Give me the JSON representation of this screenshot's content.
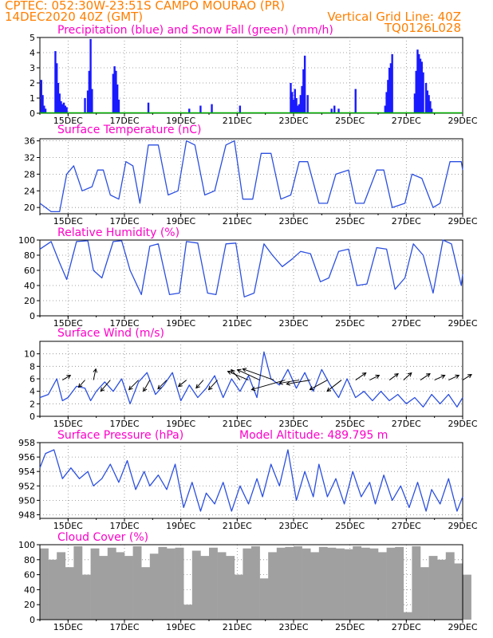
{
  "header": {
    "line1": "CPTEC:    052:30W-23:51S   CAMPO MOURAO (PR)",
    "line2_left": "14DEC2020  40Z (GMT)",
    "line2_right": "Vertical Grid Line: 40Z",
    "code": "TQ0126L028"
  },
  "colors": {
    "header_text": "#ff7f00",
    "panel_title": "#ff00c8",
    "precip_bars": "#1a1aff",
    "snow": "#00b000",
    "line": "#2b4fe0",
    "wind_arrow": "#000000",
    "cloud_fill": "#a0a0a0",
    "grid": "#888888"
  },
  "x_axis": {
    "tick_labels": [
      "15DEC",
      "17DEC",
      "19DEC",
      "21DEC",
      "23DEC",
      "25DEC",
      "27DEC",
      "29DEC"
    ],
    "range_days": [
      14.0,
      29.0
    ]
  },
  "chart_data": [
    {
      "type": "bar",
      "title": "Precipitation (blue) and Snow Fall (green) (mm/h)",
      "ylim": [
        0,
        5
      ],
      "yticks": [
        0,
        1,
        2,
        3,
        4,
        5
      ],
      "grid": true,
      "series": [
        {
          "name": "Precipitation",
          "color": "#1a1aff",
          "x": [
            14.05,
            14.1,
            14.15,
            14.2,
            14.55,
            14.6,
            14.65,
            14.7,
            14.75,
            14.8,
            14.85,
            14.9,
            14.95,
            15.6,
            15.7,
            15.75,
            15.8,
            15.85,
            16.6,
            16.65,
            16.7,
            16.75,
            16.8,
            17.85,
            19.3,
            19.7,
            20.1,
            21.1,
            22.9,
            22.95,
            23.0,
            23.05,
            23.1,
            23.15,
            23.2,
            23.25,
            23.3,
            23.35,
            23.4,
            23.5,
            24.35,
            24.45,
            24.6,
            25.2,
            26.25,
            26.3,
            26.35,
            26.4,
            26.45,
            26.5,
            27.3,
            27.35,
            27.4,
            27.45,
            27.5,
            27.55,
            27.6,
            27.7,
            27.75,
            27.8,
            27.85,
            27.9
          ],
          "values": [
            2.2,
            1.2,
            0.5,
            0.3,
            4.1,
            3.3,
            2.0,
            1.3,
            0.8,
            0.6,
            0.7,
            0.5,
            0.4,
            1.0,
            1.5,
            2.8,
            4.9,
            1.6,
            2.6,
            3.1,
            2.8,
            1.9,
            0.9,
            0.7,
            0.3,
            0.5,
            0.6,
            0.5,
            2.0,
            1.4,
            0.9,
            1.6,
            1.0,
            0.5,
            0.6,
            1.2,
            1.8,
            2.9,
            3.8,
            1.2,
            0.3,
            0.5,
            0.3,
            1.6,
            0.5,
            1.4,
            2.2,
            3.0,
            3.3,
            3.9,
            1.3,
            2.8,
            4.2,
            3.9,
            3.6,
            3.4,
            2.7,
            2.0,
            1.5,
            1.2,
            0.8,
            0.3
          ]
        },
        {
          "name": "Snow Fall",
          "color": "#00b000",
          "x": [
            14.0,
            29.0
          ],
          "values": [
            0,
            0
          ]
        }
      ]
    },
    {
      "type": "line",
      "title": "Surface Temperature (nC)",
      "ylim": [
        18.5,
        36.5
      ],
      "yticks": [
        20,
        24,
        28,
        32,
        36
      ],
      "grid": true,
      "series": [
        {
          "x": [
            14.0,
            14.4,
            14.7,
            14.95,
            15.2,
            15.5,
            15.85,
            16.05,
            16.25,
            16.5,
            16.8,
            17.05,
            17.3,
            17.55,
            17.85,
            18.2,
            18.55,
            18.9,
            19.2,
            19.5,
            19.85,
            20.2,
            20.6,
            20.9,
            21.2,
            21.55,
            21.85,
            22.2,
            22.55,
            22.9,
            23.2,
            23.5,
            23.9,
            24.2,
            24.5,
            24.95,
            25.2,
            25.5,
            25.95,
            26.2,
            26.5,
            26.95,
            27.2,
            27.55,
            27.95,
            28.2,
            28.55,
            28.95,
            29.0
          ],
          "values": [
            21,
            19,
            19,
            28,
            30,
            24,
            25,
            29,
            29,
            23,
            22,
            31,
            30,
            21,
            35,
            35,
            23,
            24,
            36,
            35,
            23,
            24,
            35,
            36,
            22,
            22,
            33,
            33,
            22,
            23,
            31,
            31,
            21,
            21,
            28,
            29,
            21,
            21,
            29,
            29,
            20,
            21,
            28,
            27,
            20,
            21,
            31,
            31,
            29
          ]
        }
      ]
    },
    {
      "type": "line",
      "title": "Relative Humidity (%)",
      "ylim": [
        0,
        100
      ],
      "yticks": [
        0,
        20,
        40,
        60,
        80,
        100
      ],
      "grid": true,
      "series": [
        {
          "x": [
            14.0,
            14.4,
            14.7,
            14.95,
            15.3,
            15.7,
            15.9,
            16.2,
            16.6,
            16.9,
            17.2,
            17.6,
            17.9,
            18.2,
            18.6,
            18.95,
            19.2,
            19.6,
            19.95,
            20.25,
            20.6,
            20.95,
            21.25,
            21.6,
            21.95,
            22.25,
            22.6,
            22.95,
            23.25,
            23.6,
            23.95,
            24.25,
            24.6,
            24.95,
            25.25,
            25.6,
            25.95,
            26.3,
            26.6,
            26.95,
            27.25,
            27.6,
            27.95,
            28.3,
            28.6,
            28.95,
            29.0
          ],
          "values": [
            88,
            98,
            70,
            48,
            98,
            99,
            60,
            50,
            98,
            99,
            60,
            28,
            92,
            95,
            28,
            30,
            98,
            96,
            30,
            28,
            95,
            96,
            25,
            30,
            95,
            80,
            65,
            75,
            85,
            82,
            45,
            50,
            85,
            88,
            40,
            42,
            90,
            88,
            35,
            50,
            95,
            80,
            30,
            100,
            95,
            40,
            55
          ]
        }
      ]
    },
    {
      "type": "line",
      "title": "Surface Wind (m/s)",
      "ylim": [
        0,
        12
      ],
      "yticks": [
        0,
        2,
        4,
        6,
        8,
        10
      ],
      "grid": true,
      "series": [
        {
          "x": [
            14.0,
            14.3,
            14.6,
            14.8,
            15.0,
            15.3,
            15.6,
            15.8,
            16.0,
            16.3,
            16.6,
            16.9,
            17.2,
            17.5,
            17.8,
            18.1,
            18.4,
            18.7,
            19.0,
            19.3,
            19.6,
            19.9,
            20.2,
            20.5,
            20.8,
            21.1,
            21.4,
            21.7,
            21.95,
            22.2,
            22.5,
            22.8,
            23.1,
            23.4,
            23.7,
            24.0,
            24.3,
            24.6,
            24.9,
            25.2,
            25.5,
            25.8,
            26.1,
            26.4,
            26.7,
            27.0,
            27.3,
            27.6,
            27.9,
            28.2,
            28.5,
            28.8,
            29.0
          ],
          "values": [
            3,
            3.5,
            6,
            2.5,
            3,
            4.8,
            4.5,
            2.5,
            4,
            5.5,
            4,
            6,
            2,
            5.5,
            7,
            3.5,
            5,
            7,
            2.5,
            5,
            3,
            4.5,
            6.5,
            3,
            6,
            4,
            6.5,
            3,
            10.3,
            6,
            5,
            7.5,
            4.5,
            7,
            4,
            7.5,
            5,
            3,
            6,
            3,
            4,
            2.5,
            4,
            2.5,
            3.5,
            2,
            3,
            1.5,
            3.5,
            2,
            3.5,
            1.5,
            3
          ]
        }
      ],
      "wind_arrows": {
        "x": [
          14.8,
          15.6,
          15.9,
          16.5,
          17.5,
          17.9,
          18.5,
          19.2,
          19.8,
          20.3,
          21.1,
          21.4,
          21.8,
          22.3,
          22.7,
          23.2,
          23.6,
          24.2,
          24.7,
          25.2,
          25.7,
          26.4,
          26.9,
          27.5,
          28.0,
          28.5,
          29.0
        ],
        "u": [
          1.0,
          -0.8,
          0.3,
          -1.2,
          -1.2,
          -0.8,
          -1.1,
          -1.0,
          -0.9,
          -1.1,
          -1.1,
          -2.6,
          -2.8,
          -3.9,
          -4.2,
          -2.5,
          -3.0,
          -2.2,
          -1.8,
          1.3,
          1.2,
          1.1,
          1.0,
          1.2,
          1.3,
          1.3,
          1.1
        ],
        "v": [
          0.6,
          -0.9,
          1.4,
          -1.4,
          -1.2,
          -1.4,
          -1.1,
          -0.8,
          -1.0,
          -1.2,
          1.3,
          1.1,
          1.3,
          1.4,
          -1.2,
          -0.4,
          -0.5,
          -1.2,
          -1.4,
          0.9,
          0.6,
          0.8,
          0.9,
          0.8,
          0.6,
          0.6,
          0.7
        ]
      }
    },
    {
      "type": "line",
      "title": "Surface Pressure (hPa)",
      "subtitle": "Model Altitude: 489.795  m",
      "ylim": [
        947.5,
        958
      ],
      "yticks": [
        948,
        950,
        952,
        954,
        956,
        958
      ],
      "grid": true,
      "series": [
        {
          "x": [
            14.0,
            14.2,
            14.5,
            14.8,
            15.1,
            15.4,
            15.7,
            15.9,
            16.2,
            16.5,
            16.8,
            17.1,
            17.4,
            17.7,
            17.9,
            18.2,
            18.5,
            18.8,
            19.1,
            19.4,
            19.7,
            19.9,
            20.2,
            20.5,
            20.8,
            21.1,
            21.4,
            21.7,
            21.9,
            22.2,
            22.5,
            22.8,
            23.1,
            23.4,
            23.7,
            23.9,
            24.2,
            24.5,
            24.8,
            25.1,
            25.4,
            25.7,
            25.9,
            26.2,
            26.5,
            26.8,
            27.1,
            27.4,
            27.7,
            27.9,
            28.2,
            28.5,
            28.8,
            29.0
          ],
          "values": [
            954.5,
            956.5,
            957,
            953,
            954.5,
            953,
            954,
            952,
            953,
            955,
            952.5,
            955.5,
            951.5,
            954,
            952,
            953.5,
            951.5,
            955,
            949,
            952.5,
            948.5,
            951,
            949.5,
            952.5,
            948.5,
            952,
            949.5,
            953,
            950.5,
            955,
            952,
            957,
            950,
            954,
            950.5,
            955,
            950.5,
            953,
            949.5,
            954,
            950.5,
            952.5,
            949.5,
            953.5,
            950,
            952,
            949,
            952.5,
            948.5,
            951.5,
            949.5,
            953,
            948.5,
            950.5
          ]
        }
      ]
    },
    {
      "type": "area",
      "title": "Cloud Cover (%)",
      "ylim": [
        0,
        100
      ],
      "yticks": [
        0,
        20,
        40,
        60,
        80,
        100
      ],
      "grid": true,
      "series": [
        {
          "x": [
            14.0,
            14.3,
            14.6,
            14.9,
            15.2,
            15.5,
            15.8,
            16.1,
            16.4,
            16.7,
            17.0,
            17.3,
            17.6,
            17.9,
            18.2,
            18.5,
            18.8,
            19.1,
            19.4,
            19.7,
            20.0,
            20.3,
            20.6,
            20.9,
            21.2,
            21.5,
            21.8,
            22.1,
            22.4,
            22.7,
            23.0,
            23.3,
            23.6,
            23.9,
            24.2,
            24.5,
            24.8,
            25.1,
            25.4,
            25.7,
            26.0,
            26.3,
            26.6,
            26.9,
            27.2,
            27.5,
            27.8,
            28.1,
            28.4,
            28.7,
            29.0
          ],
          "values": [
            95,
            80,
            90,
            70,
            98,
            60,
            95,
            85,
            96,
            90,
            85,
            98,
            70,
            88,
            97,
            95,
            96,
            20,
            92,
            85,
            96,
            90,
            85,
            60,
            95,
            98,
            55,
            90,
            96,
            97,
            98,
            95,
            90,
            97,
            96,
            95,
            94,
            98,
            96,
            95,
            90,
            96,
            97,
            10,
            98,
            70,
            85,
            80,
            90,
            75,
            60
          ]
        }
      ]
    }
  ]
}
